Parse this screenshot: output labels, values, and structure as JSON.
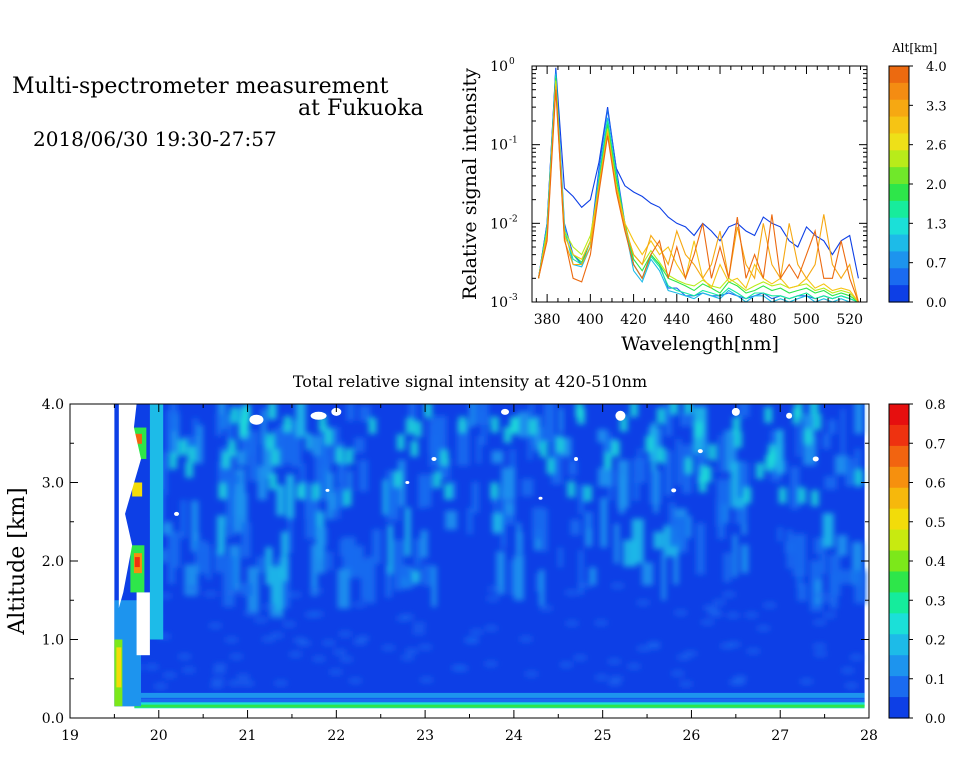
{
  "header": {
    "title_line1": "Multi-spectrometer measurement",
    "title_line2": "at Fukuoka",
    "datetime": "2018/06/30 19:30-27:57"
  },
  "colors": {
    "levels": [
      "#0d3fe6",
      "#1a6bf0",
      "#1d94ee",
      "#1dbbe8",
      "#1be0d8",
      "#15ec9c",
      "#2ee64a",
      "#7ce81a",
      "#c8ea10",
      "#f2dc0a",
      "#f6b80c",
      "#f6900e",
      "#f26410",
      "#ee3210",
      "#e60f0f"
    ]
  },
  "chart_data": [
    {
      "type": "line",
      "xlabel": "Wavelength[nm]",
      "ylabel": "Relative signal intensity",
      "xlim": [
        373,
        528
      ],
      "xticks": [
        380,
        400,
        420,
        440,
        460,
        480,
        500,
        520
      ],
      "yscale": "log",
      "ylim": [
        0.001,
        1
      ],
      "yticks": [
        {
          "value": 1,
          "label": "10",
          "exp": "0"
        },
        {
          "value": 0.1,
          "label": "10",
          "exp": "-1"
        },
        {
          "value": 0.01,
          "label": "10",
          "exp": "-2"
        },
        {
          "value": 0.001,
          "label": "10",
          "exp": "-3"
        }
      ],
      "colorbar": {
        "label": "Alt[km]",
        "ticks": [
          "4.0",
          "3.3",
          "2.6",
          "2.0",
          "1.3",
          "0.7",
          "0.0"
        ],
        "colors": [
          "#ec6a10",
          "#f48c12",
          "#f6a812",
          "#f6c414",
          "#eee018",
          "#b8ec1a",
          "#70e82a",
          "#2ee64a",
          "#17ec9c",
          "#1be0d8",
          "#1dbbe8",
          "#1d94ee",
          "#1a6bf0",
          "#0d3fe6"
        ]
      },
      "x": [
        376,
        380,
        384,
        388,
        392,
        396,
        400,
        404,
        408,
        412,
        416,
        420,
        424,
        428,
        432,
        436,
        440,
        444,
        448,
        452,
        456,
        460,
        464,
        468,
        472,
        476,
        480,
        484,
        488,
        492,
        496,
        500,
        504,
        508,
        512,
        516,
        520,
        524
      ],
      "series": [
        {
          "color": "#0d3fe6",
          "values": [
            0.002,
            0.01,
            0.95,
            0.028,
            0.022,
            0.016,
            0.02,
            0.06,
            0.3,
            0.05,
            0.03,
            0.025,
            0.022,
            0.018,
            0.016,
            0.012,
            0.01,
            0.009,
            0.007,
            0.01,
            0.008,
            0.006,
            0.009,
            0.01,
            0.008,
            0.007,
            0.012,
            0.01,
            0.009,
            0.006,
            0.005,
            0.009,
            0.007,
            0.006,
            0.004,
            0.006,
            0.007,
            0.002
          ]
        },
        {
          "color": "#1a6bf0",
          "values": [
            0.002,
            0.01,
            0.9,
            0.01,
            0.004,
            0.003,
            0.006,
            0.05,
            0.28,
            0.05,
            0.01,
            0.003,
            0.002,
            0.004,
            0.003,
            0.0015,
            0.0015,
            0.0012,
            0.0012,
            0.0013,
            0.0012,
            0.0012,
            0.0013,
            0.0012,
            0.0011,
            0.0012,
            0.0013,
            0.0011,
            0.0012,
            0.0011,
            0.0012,
            0.0012,
            0.0011,
            0.0012,
            0.0011,
            0.0012,
            0.0011,
            0.001
          ]
        },
        {
          "color": "#1dbbe8",
          "values": [
            0.002,
            0.008,
            0.8,
            0.009,
            0.003,
            0.0028,
            0.005,
            0.04,
            0.22,
            0.04,
            0.009,
            0.0025,
            0.0018,
            0.0035,
            0.0025,
            0.0014,
            0.0013,
            0.0012,
            0.0011,
            0.0013,
            0.0012,
            0.0011,
            0.0014,
            0.0012,
            0.001,
            0.0012,
            0.0012,
            0.001,
            0.0011,
            0.001,
            0.0011,
            0.0012,
            0.001,
            0.0011,
            0.001,
            0.0011,
            0.001,
            0.001
          ]
        },
        {
          "color": "#17ec9c",
          "values": [
            0.002,
            0.009,
            0.75,
            0.008,
            0.0035,
            0.003,
            0.005,
            0.035,
            0.2,
            0.04,
            0.01,
            0.003,
            0.002,
            0.0038,
            0.0028,
            0.0016,
            0.0014,
            0.0013,
            0.0012,
            0.0014,
            0.0013,
            0.0012,
            0.0015,
            0.0013,
            0.0011,
            0.0013,
            0.0013,
            0.0012,
            0.0012,
            0.0011,
            0.0012,
            0.0013,
            0.0011,
            0.0012,
            0.0011,
            0.0012,
            0.0011,
            0.001
          ]
        },
        {
          "color": "#2ee64a",
          "values": [
            0.002,
            0.008,
            0.7,
            0.007,
            0.004,
            0.0032,
            0.006,
            0.033,
            0.18,
            0.036,
            0.01,
            0.0035,
            0.0025,
            0.004,
            0.003,
            0.002,
            0.0018,
            0.0016,
            0.0014,
            0.0017,
            0.0015,
            0.0013,
            0.0018,
            0.0016,
            0.0013,
            0.0014,
            0.0016,
            0.0014,
            0.0015,
            0.0013,
            0.0014,
            0.0015,
            0.0013,
            0.0014,
            0.0012,
            0.0013,
            0.0012,
            0.001
          ]
        },
        {
          "color": "#b8ec1a",
          "values": [
            0.002,
            0.008,
            0.65,
            0.008,
            0.005,
            0.004,
            0.007,
            0.03,
            0.16,
            0.03,
            0.009,
            0.004,
            0.003,
            0.0045,
            0.0032,
            0.0022,
            0.0019,
            0.0017,
            0.0016,
            0.0019,
            0.0016,
            0.0015,
            0.002,
            0.0017,
            0.0014,
            0.0016,
            0.0018,
            0.0016,
            0.0017,
            0.0015,
            0.0016,
            0.0017,
            0.0014,
            0.0015,
            0.0013,
            0.0014,
            0.0013,
            0.001
          ]
        },
        {
          "color": "#f6c414",
          "values": [
            0.002,
            0.007,
            0.6,
            0.007,
            0.004,
            0.0035,
            0.006,
            0.03,
            0.15,
            0.03,
            0.01,
            0.006,
            0.004,
            0.006,
            0.004,
            0.005,
            0.003,
            0.002,
            0.006,
            0.002,
            0.0015,
            0.003,
            0.0018,
            0.002,
            0.0015,
            0.003,
            0.002,
            0.0017,
            0.002,
            0.0015,
            0.0016,
            0.002,
            0.0015,
            0.0017,
            0.0014,
            0.0015,
            0.0014,
            0.001
          ]
        },
        {
          "color": "#f6a812",
          "values": [
            0.002,
            0.007,
            0.55,
            0.006,
            0.003,
            0.003,
            0.005,
            0.028,
            0.14,
            0.028,
            0.009,
            0.004,
            0.003,
            0.007,
            0.005,
            0.003,
            0.008,
            0.004,
            0.003,
            0.002,
            0.003,
            0.008,
            0.002,
            0.009,
            0.003,
            0.002,
            0.01,
            0.003,
            0.002,
            0.01,
            0.003,
            0.002,
            0.003,
            0.013,
            0.003,
            0.002,
            0.003,
            0.001
          ]
        },
        {
          "color": "#ec6a10",
          "values": [
            0.002,
            0.006,
            0.5,
            0.0065,
            0.002,
            0.0018,
            0.004,
            0.025,
            0.13,
            0.025,
            0.008,
            0.003,
            0.002,
            0.004,
            0.006,
            0.002,
            0.005,
            0.002,
            0.004,
            0.01,
            0.002,
            0.005,
            0.002,
            0.012,
            0.002,
            0.004,
            0.002,
            0.013,
            0.002,
            0.003,
            0.002,
            0.004,
            0.008,
            0.002,
            0.002,
            0.006,
            0.002,
            0.001
          ]
        }
      ]
    },
    {
      "type": "heatmap",
      "title": "Total relative signal intensity at 420-510nm",
      "ylabel": "Altitude [km]",
      "xlim": [
        19,
        28
      ],
      "xticks": [
        "19",
        "20",
        "21",
        "22",
        "23",
        "24",
        "25",
        "26",
        "27",
        "28"
      ],
      "ylim": [
        0,
        4
      ],
      "yticks": [
        "0.0",
        "1.0",
        "2.0",
        "3.0",
        "4.0"
      ],
      "data_range": {
        "x": [
          19.5,
          27.95
        ],
        "y": [
          0.15,
          4.0
        ]
      },
      "colorbar": {
        "ticks": [
          "0.8",
          "0.7",
          "0.6",
          "0.5",
          "0.4",
          "0.3",
          "0.2",
          "0.1",
          "0.0"
        ],
        "range": [
          0,
          0.8
        ]
      }
    }
  ]
}
